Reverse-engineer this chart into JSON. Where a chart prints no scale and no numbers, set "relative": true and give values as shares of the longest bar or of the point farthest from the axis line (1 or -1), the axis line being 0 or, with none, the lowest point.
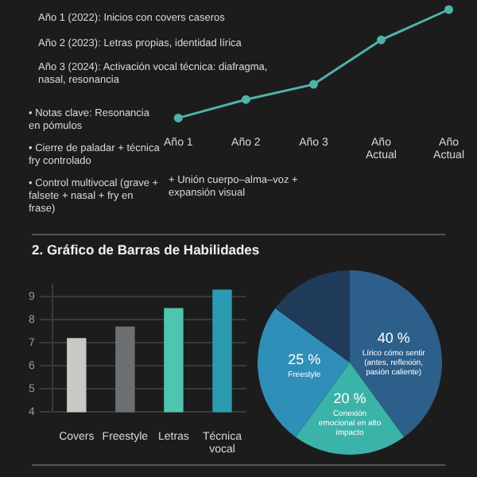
{
  "chart_data": [
    {
      "type": "line",
      "categories": [
        "Año 1",
        "Año 2",
        "Año 3",
        "Año Actual",
        "Año Actual"
      ],
      "relative": true,
      "marker": "circle",
      "legend": false,
      "grid": false,
      "series": [
        {
          "color": "#4fb3a9",
          "values": [
            0,
            0.17,
            0.31,
            0.72,
            1
          ]
        }
      ],
      "annotations": [
        "Año 1 (2022): Inicios con covers caseros",
        "Año 2 (2023): Letras propias, identidad lírica",
        "Año 3 (2024): Activación vocal técnica: diafragma, nasal, resonancia",
        "• Notas clave: Resonancia en pómulos",
        "• Cierre de paladar + técnica fry controlado",
        "• Control multivocal (grave + falsete + nasal + fry en frase)",
        "+ Unión cuerpo–alma–voz + expansión visual"
      ]
    },
    {
      "type": "bar",
      "title": "2. Gráfico de Barras de Habilidades",
      "categories": [
        "Covers",
        "Freestyle",
        "Letras",
        "Técnica vocal"
      ],
      "values": [
        7.2,
        7.7,
        8.5,
        9.3
      ],
      "colors": [
        "#c8c8c4",
        "#6b6f72",
        "#4fc4b0",
        "#2a9bb0"
      ],
      "ylim": [
        4,
        9.5
      ],
      "yticks": [
        4,
        5,
        6,
        7,
        8,
        9
      ],
      "grid": "y",
      "legend": false
    },
    {
      "type": "pie",
      "categories": [
        "Lírico cómo sentir (antes, reflexión, pasión caliente)",
        "Conexión emocional en alto impacto",
        "Freestyle",
        null
      ],
      "values": [
        40,
        20,
        25,
        15
      ],
      "colors": [
        "#2c5f8a",
        "#3bb3a8",
        "#2f8fb8",
        "#203a5a"
      ],
      "value_labels": [
        "40 %",
        "20 %",
        "25 %",
        null
      ],
      "legend": false
    }
  ]
}
